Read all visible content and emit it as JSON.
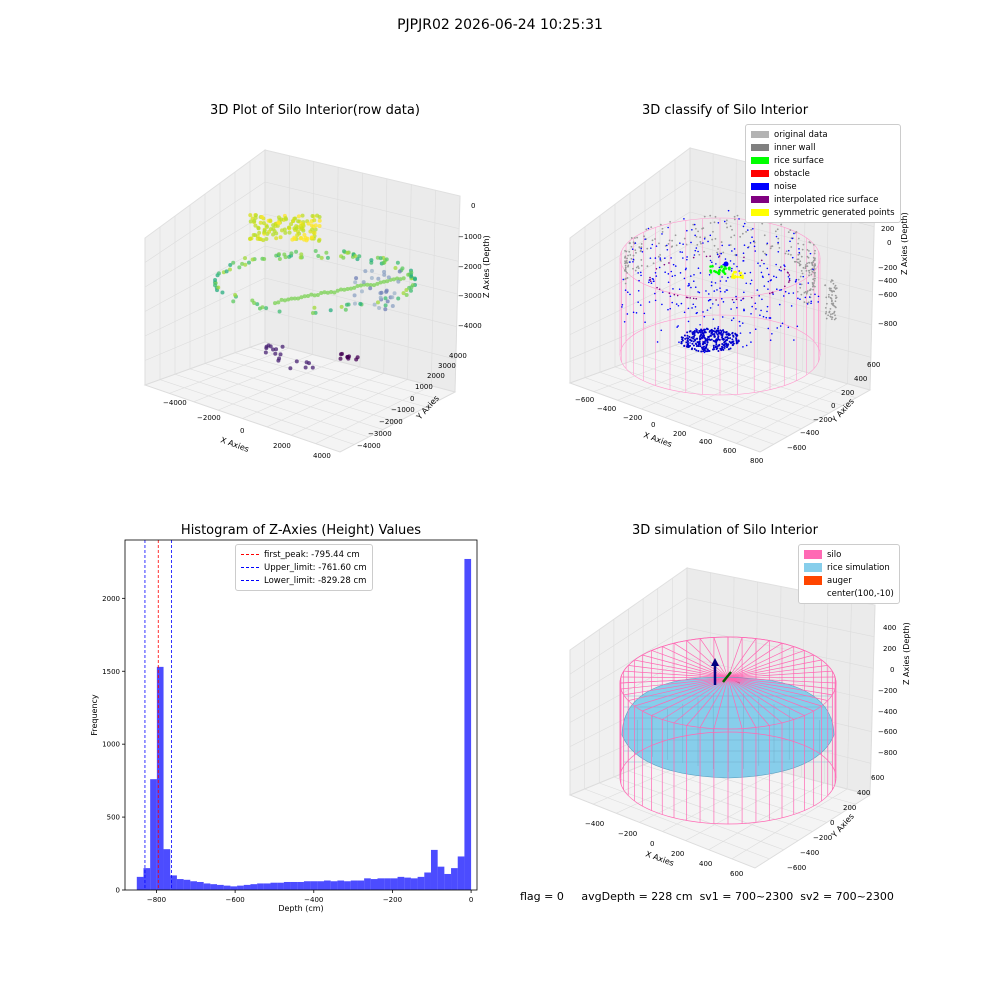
{
  "figure": {
    "suptitle": "PJPJR02 2026-06-24 10:25:31",
    "status": {
      "flag": "flag = 0",
      "avg_depth": "avgDepth = 228 cm",
      "sv1": "sv1 = 700~2300",
      "sv2": "sv2 = 700~2300"
    }
  },
  "chart_data": [
    {
      "type": "scatter",
      "subplot": "top-left",
      "title": "3D Plot of Silo Interior(row data)",
      "xlabel": "X Axies",
      "ylabel": "Y Axies",
      "zlabel": "Z Axies (Depth)",
      "x_ticks": [
        "−4000",
        "−2000",
        "0",
        "2000",
        "4000"
      ],
      "y_ticks": [
        "4000",
        "3000",
        "2000",
        "1000",
        "0",
        "−1000",
        "−2000",
        "−3000",
        "−4000"
      ],
      "z_ticks": [
        "0",
        "−1000",
        "−2000",
        "−3000",
        "−4000"
      ],
      "xlim": [
        -4500,
        4500
      ],
      "ylim": [
        -4500,
        4500
      ],
      "zlim": [
        -4500,
        0
      ],
      "colormap": "viridis",
      "grid": true
    },
    {
      "type": "scatter",
      "subplot": "top-right",
      "title": "3D classify of Silo Interior",
      "xlabel": "X Axies",
      "ylabel": "Y Axies",
      "zlabel": "Z Axies (Depth)",
      "x_ticks": [
        "−600",
        "−400",
        "−200",
        "0",
        "200",
        "400",
        "600",
        "800"
      ],
      "y_ticks": [
        "600",
        "400",
        "200",
        "0",
        "−200",
        "−400",
        "−600"
      ],
      "z_ticks": [
        "200",
        "0",
        "−200",
        "−400",
        "−600",
        "−800"
      ],
      "legend_position": "top-right",
      "legend": [
        {
          "label": "original data",
          "color": "#b3b3b3"
        },
        {
          "label": "inner wall",
          "color": "#808080"
        },
        {
          "label": "rice surface",
          "color": "#00ff00"
        },
        {
          "label": "obstacle",
          "color": "#ff0000"
        },
        {
          "label": "noise",
          "color": "#0000ff"
        },
        {
          "label": "interpolated rice surface",
          "color": "#800080"
        },
        {
          "label": "symmetric generated points",
          "color": "#ffff00"
        }
      ],
      "grid": true
    },
    {
      "type": "bar",
      "subplot": "bottom-left",
      "title": "Histogram of Z-Axies (Height) Values",
      "xlabel": "Depth (cm)",
      "ylabel": "Frequency",
      "xlim": [
        -880,
        15
      ],
      "ylim": [
        0,
        2400
      ],
      "x_ticks": [
        -800,
        -600,
        -400,
        -200,
        0
      ],
      "x_tick_labels": [
        "−800",
        "−600",
        "−400",
        "−200",
        "0"
      ],
      "y_ticks": [
        0,
        500,
        1000,
        1500,
        2000
      ],
      "bin_width": 17,
      "bin_starts": [
        -850,
        -833,
        -816,
        -799,
        -782,
        -765,
        -748,
        -731,
        -714,
        -697,
        -680,
        -663,
        -646,
        -629,
        -612,
        -595,
        -578,
        -561,
        -544,
        -527,
        -510,
        -493,
        -476,
        -459,
        -442,
        -425,
        -408,
        -391,
        -374,
        -357,
        -340,
        -323,
        -306,
        -289,
        -272,
        -255,
        -238,
        -221,
        -204,
        -187,
        -170,
        -153,
        -136,
        -119,
        -102,
        -85,
        -68,
        -51,
        -34,
        -17
      ],
      "values": [
        90,
        150,
        760,
        1530,
        280,
        100,
        75,
        70,
        60,
        55,
        45,
        40,
        35,
        30,
        25,
        30,
        35,
        40,
        45,
        45,
        50,
        50,
        55,
        55,
        55,
        60,
        60,
        60,
        65,
        60,
        65,
        60,
        65,
        65,
        80,
        75,
        80,
        80,
        80,
        90,
        85,
        80,
        90,
        120,
        275,
        160,
        110,
        150,
        230,
        2270
      ],
      "bar_color": "#0000ff",
      "bar_opacity": 0.7,
      "vlines": [
        {
          "x": -795.44,
          "label": "first_peak: -795.44 cm",
          "color": "#ff0000"
        },
        {
          "x": -761.6,
          "label": "Upper_limit: -761.60 cm",
          "color": "#0000ff"
        },
        {
          "x": -829.28,
          "label": "Lower_limit: -829.28 cm",
          "color": "#0000ff"
        }
      ],
      "legend_position": "top-center"
    },
    {
      "type": "area",
      "subplot": "bottom-right",
      "title": "3D simulation of Silo Interior",
      "xlabel": "X Axies",
      "ylabel": "Y Axies",
      "zlabel": "Z Axies (Depth)",
      "x_ticks": [
        "−400",
        "−200",
        "0",
        "200",
        "400",
        "600"
      ],
      "y_ticks": [
        "600",
        "400",
        "200",
        "0",
        "−200",
        "−400",
        "−600"
      ],
      "z_ticks": [
        "400",
        "200",
        "0",
        "−200",
        "−400",
        "−600",
        "−800"
      ],
      "legend_position": "top-right",
      "legend": [
        {
          "label": "silo",
          "color": "#ff69b4"
        },
        {
          "label": "rice simulation",
          "color": "#87ceeb"
        },
        {
          "label": "auger",
          "color": "#ff4500"
        },
        {
          "label": "center(100,-10)",
          "color": ""
        }
      ],
      "grid": true
    }
  ]
}
